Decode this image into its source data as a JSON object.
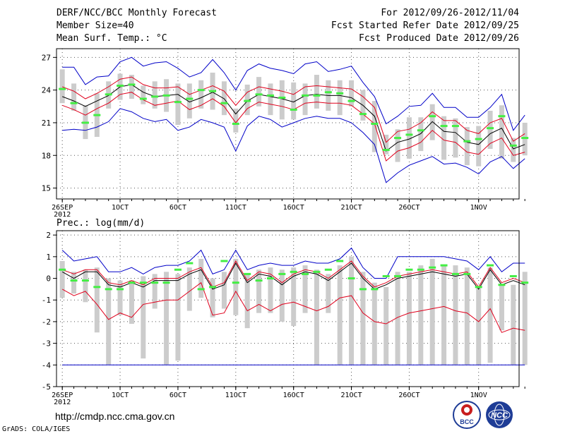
{
  "header": {
    "title": "DERF/NCC/BCC Monthly Forecast",
    "member_size": "Member Size=40",
    "variable": "Mean Surf. Temp.: °C",
    "forecast_period": "For 2012/09/26-2012/11/04",
    "fcst_started": "Fcst Started Refer Date 2012/09/25",
    "fcst_produced": "Fcst Produced Date 2012/09/26"
  },
  "footer": {
    "url": "http://cmdp.ncc.cma.gov.cn",
    "grads": "GrADS: COLA/IGES",
    "logo_bcc": "BCC",
    "logo_ncc": "NCC"
  },
  "colors": {
    "ensemble_mean": "#000000",
    "std_band": "#e0001c",
    "extreme": "#0000c8",
    "box": "#cccccc",
    "marker": "#44ee44",
    "grid": "#555555"
  },
  "chart_data": [
    {
      "type": "ensemble-boxplot",
      "title": "Mean Surf. Temp.: °C",
      "x_tick_labels": [
        "26SEP",
        "1OCT",
        "6OCT",
        "11OCT",
        "16OCT",
        "21OCT",
        "26OCT",
        "1NOV"
      ],
      "x_tick_days": [
        0,
        5,
        10,
        15,
        20,
        25,
        30,
        36
      ],
      "x_year_label": "2012",
      "xlim": [
        -0.5,
        39.5
      ],
      "ylim": [
        14,
        27.8
      ],
      "y_ticks": [
        15,
        18,
        21,
        24,
        27
      ],
      "mean": [
        23.4,
        23.0,
        22.5,
        23.0,
        23.5,
        24.3,
        24.5,
        23.8,
        23.4,
        23.5,
        23.6,
        22.9,
        23.3,
        23.8,
        23.2,
        21.8,
        23.0,
        23.6,
        23.4,
        23.2,
        22.9,
        23.5,
        23.6,
        23.5,
        23.5,
        23.3,
        22.6,
        21.6,
        18.4,
        19.2,
        19.5,
        20.0,
        21.1,
        20.2,
        20.1,
        19.2,
        19.0,
        20.0,
        20.5,
        18.6,
        19.0
      ],
      "upper_std": [
        24.3,
        23.9,
        23.2,
        23.7,
        24.3,
        25.0,
        25.2,
        24.5,
        24.2,
        24.2,
        24.3,
        23.6,
        24.0,
        24.4,
        23.9,
        22.6,
        23.8,
        24.3,
        24.1,
        23.9,
        23.6,
        24.3,
        24.4,
        24.3,
        24.2,
        24.1,
        23.4,
        22.4,
        19.2,
        20.2,
        20.4,
        21.0,
        22.0,
        21.2,
        21.2,
        20.3,
        20.0,
        21.0,
        21.4,
        19.3,
        20.0
      ],
      "lower_std": [
        22.6,
        22.2,
        21.7,
        22.3,
        22.8,
        23.6,
        23.8,
        23.1,
        22.6,
        22.8,
        23.0,
        22.2,
        22.6,
        23.2,
        22.5,
        21.0,
        22.3,
        22.9,
        22.7,
        22.5,
        22.2,
        22.8,
        22.9,
        22.8,
        22.8,
        22.6,
        21.8,
        20.9,
        17.5,
        18.4,
        18.7,
        19.2,
        20.3,
        19.4,
        19.2,
        18.3,
        18.1,
        19.1,
        19.6,
        18.0,
        18.3
      ],
      "maximum": [
        26.1,
        26.1,
        24.5,
        25.2,
        25.3,
        26.6,
        27.0,
        26.2,
        26.5,
        26.6,
        26.0,
        25.2,
        25.6,
        26.8,
        25.6,
        24.0,
        25.8,
        26.4,
        26.0,
        25.8,
        25.5,
        26.4,
        26.6,
        25.7,
        25.9,
        26.2,
        24.7,
        23.4,
        20.9,
        21.6,
        22.5,
        22.6,
        23.7,
        22.4,
        22.4,
        21.5,
        21.5,
        22.4,
        23.6,
        20.3,
        21.7
      ],
      "minimum": [
        20.3,
        20.4,
        20.3,
        20.6,
        21.1,
        22.3,
        22.0,
        21.4,
        21.1,
        21.3,
        20.3,
        20.6,
        21.3,
        21.0,
        20.6,
        18.4,
        20.7,
        21.6,
        21.3,
        20.6,
        21.0,
        21.4,
        21.6,
        21.4,
        21.4,
        21.0,
        20.1,
        19.0,
        15.5,
        16.4,
        17.1,
        17.5,
        17.9,
        17.2,
        17.3,
        16.9,
        16.3,
        17.4,
        17.9,
        16.8,
        17.7
      ],
      "box_high": [
        25.9,
        24.6,
        22.6,
        23.7,
        24.8,
        25.5,
        25.4,
        24.4,
        24.8,
        25.0,
        24.6,
        24.6,
        24.9,
        25.6,
        24.8,
        22.3,
        24.5,
        25.2,
        24.6,
        24.9,
        24.7,
        24.6,
        25.4,
        24.9,
        24.9,
        24.9,
        24.0,
        23.0,
        19.9,
        20.4,
        21.5,
        21.5,
        22.7,
        21.6,
        21.4,
        20.6,
        20.7,
        22.1,
        22.6,
        19.6,
        21.0
      ],
      "box_low": [
        22.8,
        22.1,
        19.5,
        19.7,
        22.3,
        23.1,
        23.2,
        22.7,
        22.3,
        22.0,
        20.8,
        21.4,
        22.3,
        22.2,
        21.7,
        20.1,
        21.7,
        22.5,
        21.7,
        21.3,
        21.3,
        21.7,
        22.3,
        22.1,
        21.7,
        22.5,
        21.2,
        18.3,
        18.1,
        17.4,
        17.7,
        18.4,
        19.4,
        17.6,
        17.8,
        17.1,
        17.0,
        18.6,
        17.7,
        17.4,
        18.0
      ],
      "marker": [
        24.1,
        22.8,
        21.0,
        21.7,
        23.6,
        24.4,
        24.5,
        23.2,
        23.4,
        23.5,
        22.9,
        23.2,
        24.0,
        23.9,
        22.8,
        20.9,
        23.0,
        23.6,
        23.5,
        23.3,
        22.2,
        23.5,
        23.5,
        23.8,
        23.7,
        23.0,
        21.8,
        20.9,
        18.5,
        19.6,
        19.9,
        20.3,
        21.6,
        20.7,
        20.7,
        19.3,
        19.5,
        20.5,
        21.6,
        18.9,
        19.6
      ]
    },
    {
      "type": "ensemble-boxplot",
      "title": "Prec.: log(mm/d)",
      "x_tick_labels": [
        "26SEP",
        "1OCT",
        "6OCT",
        "11OCT",
        "16OCT",
        "21OCT",
        "26OCT",
        "1NOV"
      ],
      "x_tick_days": [
        0,
        5,
        10,
        15,
        20,
        25,
        30,
        36
      ],
      "x_year_label": "2012",
      "xlim": [
        -0.5,
        39.5
      ],
      "ylim": [
        -5,
        2.2
      ],
      "y_ticks": [
        -5,
        -4,
        -3,
        -2,
        -1,
        0,
        1,
        2
      ],
      "mean": [
        0.3,
        0.0,
        0.3,
        0.3,
        -0.3,
        -0.4,
        -0.2,
        -0.4,
        -0.1,
        -0.1,
        -0.1,
        0.2,
        0.4,
        -0.5,
        -0.3,
        0.7,
        -0.2,
        0.2,
        0.1,
        -0.3,
        0.1,
        0.3,
        0.2,
        -0.1,
        0.3,
        0.7,
        0.0,
        -0.5,
        -0.3,
        0.0,
        0.1,
        0.2,
        0.3,
        0.2,
        0.1,
        0.2,
        -0.5,
        0.4,
        -0.3,
        -0.1,
        -0.3
      ],
      "upper_std": [
        0.4,
        0.2,
        0.4,
        0.4,
        -0.2,
        -0.3,
        -0.1,
        -0.3,
        0.0,
        0.0,
        0.0,
        0.3,
        0.5,
        -0.4,
        -0.2,
        0.8,
        -0.1,
        0.3,
        0.2,
        -0.2,
        0.2,
        0.4,
        0.3,
        0.0,
        0.4,
        0.8,
        0.1,
        -0.4,
        -0.2,
        0.1,
        0.2,
        0.3,
        0.4,
        0.3,
        0.2,
        0.3,
        -0.4,
        0.5,
        -0.2,
        0.0,
        -0.2
      ],
      "lower_std": [
        -0.5,
        -0.8,
        -0.6,
        -1.2,
        -1.9,
        -1.6,
        -1.8,
        -1.2,
        -1.1,
        -1.0,
        -1.0,
        -0.6,
        -0.2,
        -1.7,
        -1.6,
        -0.6,
        -1.5,
        -1.2,
        -1.5,
        -1.2,
        -1.1,
        -1.3,
        -1.5,
        -1.3,
        -0.9,
        -0.8,
        -1.6,
        -2.0,
        -2.1,
        -1.8,
        -1.6,
        -1.5,
        -1.4,
        -1.3,
        -1.5,
        -1.6,
        -2.0,
        -1.4,
        -2.5,
        -2.3,
        -2.4
      ],
      "maximum": [
        1.3,
        0.8,
        0.9,
        1.0,
        0.3,
        0.3,
        0.5,
        0.2,
        0.5,
        0.6,
        0.6,
        0.8,
        1.3,
        0.2,
        0.4,
        1.3,
        0.4,
        0.6,
        0.7,
        0.6,
        0.6,
        0.8,
        0.7,
        0.7,
        0.9,
        1.4,
        0.5,
        0.0,
        0.0,
        1.0,
        1.0,
        1.0,
        1.0,
        1.0,
        0.9,
        0.8,
        0.4,
        1.0,
        0.3,
        0.7,
        0.7
      ],
      "minimum": [
        -4.0,
        -4.0,
        -4.0,
        -4.0,
        -4.0,
        -4.0,
        -4.0,
        -4.0,
        -4.0,
        -4.0,
        -4.0,
        -4.0,
        -4.0,
        -4.0,
        -4.0,
        -4.0,
        -4.0,
        -4.0,
        -4.0,
        -4.0,
        -4.0,
        -4.0,
        -4.0,
        -4.0,
        -4.0,
        -4.0,
        -4.0,
        -4.0,
        -4.0,
        -4.0,
        -4.0,
        -4.0,
        -4.0,
        -4.0,
        -4.0,
        -4.0,
        -4.0,
        -4.0,
        -4.0,
        -4.0,
        -4.0
      ],
      "box_high": [
        0.8,
        0.3,
        0.4,
        0.5,
        0.0,
        -0.1,
        -0.1,
        0.1,
        0.2,
        0.3,
        0.2,
        0.5,
        0.9,
        0.0,
        0.3,
        0.9,
        0.2,
        0.4,
        0.5,
        0.4,
        0.5,
        0.6,
        0.4,
        0.2,
        0.6,
        1.0,
        0.3,
        -0.2,
        -0.4,
        0.3,
        0.3,
        0.6,
        0.9,
        0.6,
        0.6,
        0.5,
        -0.4,
        0.5,
        -0.3,
        -0.3,
        0.3
      ],
      "box_low": [
        -0.9,
        -0.7,
        -1.1,
        -2.5,
        -4.0,
        -1.7,
        -2.1,
        -3.7,
        -1.4,
        -4.0,
        -3.8,
        -1.5,
        -0.9,
        -1.8,
        -1.4,
        -1.7,
        -2.3,
        -1.6,
        -1.6,
        -2.0,
        -2.2,
        -1.6,
        -4.0,
        -1.6,
        -4.0,
        -4.0,
        -4.0,
        -4.0,
        -4.0,
        -4.0,
        -4.0,
        -4.0,
        -4.0,
        -4.0,
        -4.0,
        -4.0,
        -4.0,
        -3.9,
        -2.4,
        -4.0,
        -4.0
      ],
      "marker": [
        0.4,
        -0.1,
        -0.1,
        -0.4,
        -0.5,
        -0.5,
        -0.2,
        -0.2,
        -0.2,
        -0.2,
        0.4,
        0.7,
        -0.5,
        -0.4,
        0.8,
        -0.2,
        0.2,
        -0.1,
        0.0,
        0.2,
        0.3,
        0.2,
        0.3,
        0.4,
        0.8,
        0.0,
        -0.5,
        -0.5,
        0.1,
        0.1,
        0.4,
        0.4,
        0.5,
        0.6,
        0.2,
        0.2,
        -0.4,
        0.6,
        -0.3,
        0.1,
        -0.2
      ]
    }
  ]
}
